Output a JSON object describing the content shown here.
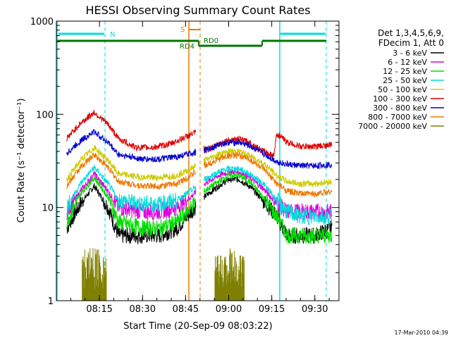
{
  "chart_data": {
    "type": "line",
    "title": "HESSI Observing Summary Count Rates",
    "xlabel": "Start Time (20-Sep-09 08:03:22)",
    "ylabel": "Count Rate (s⁻¹ detector⁻¹)",
    "y_scale": "log",
    "ylim": [
      1,
      1000
    ],
    "xlim_minutes": [
      8.0,
      9.64
    ],
    "x_unit": "hours",
    "x_ticks": [
      {
        "value": 8.25,
        "label": "08:15"
      },
      {
        "value": 8.5,
        "label": "08:30"
      },
      {
        "value": 8.75,
        "label": "08:45"
      },
      {
        "value": 9.0,
        "label": "09:00"
      },
      {
        "value": 9.25,
        "label": "09:15"
      },
      {
        "value": 9.5,
        "label": "09:30"
      }
    ],
    "y_ticks": [
      {
        "value": 1,
        "label": "1"
      },
      {
        "value": 10,
        "label": "10"
      },
      {
        "value": 100,
        "label": "100"
      },
      {
        "value": 1000,
        "label": "1000"
      }
    ],
    "legend": {
      "position": "right",
      "header": [
        "Det 1,3,4,5,6,9,",
        "FDecim 1, Att 0"
      ]
    },
    "series": [
      {
        "name": "3 - 6 keV",
        "color": "#000000",
        "points": [
          [
            8.06,
            6
          ],
          [
            8.14,
            11
          ],
          [
            8.22,
            17
          ],
          [
            8.3,
            10
          ],
          [
            8.36,
            5
          ],
          [
            8.5,
            5
          ],
          [
            8.6,
            5
          ],
          [
            8.7,
            6
          ],
          [
            8.78,
            9
          ],
          [
            8.86,
            13
          ],
          [
            8.94,
            17
          ],
          [
            9.0,
            20
          ],
          [
            9.06,
            20
          ],
          [
            9.12,
            17
          ],
          [
            9.2,
            12
          ],
          [
            9.28,
            8
          ],
          [
            9.34,
            5
          ],
          [
            9.42,
            5
          ],
          [
            9.5,
            5
          ],
          [
            9.6,
            6
          ]
        ]
      },
      {
        "name": "6 - 12 keV",
        "color": "#dd00dd",
        "points": [
          [
            8.06,
            9
          ],
          [
            8.14,
            15
          ],
          [
            8.22,
            23
          ],
          [
            8.3,
            15
          ],
          [
            8.36,
            10
          ],
          [
            8.5,
            9
          ],
          [
            8.6,
            9
          ],
          [
            8.7,
            10
          ],
          [
            8.78,
            13
          ],
          [
            8.86,
            18
          ],
          [
            8.94,
            22
          ],
          [
            9.0,
            24
          ],
          [
            9.06,
            24
          ],
          [
            9.12,
            21
          ],
          [
            9.2,
            16
          ],
          [
            9.28,
            11
          ],
          [
            9.34,
            9
          ],
          [
            9.42,
            9
          ],
          [
            9.5,
            9
          ],
          [
            9.6,
            9
          ]
        ]
      },
      {
        "name": "12 - 25 keV",
        "color": "#00dd00",
        "points": [
          [
            8.06,
            7
          ],
          [
            8.14,
            14
          ],
          [
            8.22,
            21
          ],
          [
            8.3,
            13
          ],
          [
            8.36,
            7
          ],
          [
            8.5,
            6
          ],
          [
            8.6,
            6
          ],
          [
            8.7,
            7
          ],
          [
            8.78,
            10
          ],
          [
            8.86,
            15
          ],
          [
            8.94,
            19
          ],
          [
            9.0,
            22
          ],
          [
            9.06,
            22
          ],
          [
            9.12,
            19
          ],
          [
            9.2,
            13
          ],
          [
            9.28,
            8
          ],
          [
            9.34,
            5
          ],
          [
            9.42,
            5
          ],
          [
            9.5,
            5
          ],
          [
            9.6,
            5
          ]
        ]
      },
      {
        "name": "25 - 50 keV",
        "color": "#00dddd",
        "points": [
          [
            8.06,
            10
          ],
          [
            8.14,
            18
          ],
          [
            8.22,
            27
          ],
          [
            8.3,
            18
          ],
          [
            8.36,
            12
          ],
          [
            8.5,
            11
          ],
          [
            8.6,
            11
          ],
          [
            8.7,
            12
          ],
          [
            8.78,
            15
          ],
          [
            8.86,
            20
          ],
          [
            8.94,
            24
          ],
          [
            9.0,
            26
          ],
          [
            9.06,
            26
          ],
          [
            9.12,
            23
          ],
          [
            9.2,
            18
          ],
          [
            9.28,
            12
          ],
          [
            9.34,
            9
          ],
          [
            9.42,
            8
          ],
          [
            9.5,
            8
          ],
          [
            9.6,
            8
          ]
        ]
      },
      {
        "name": "50 - 100 keV",
        "color": "#cccc00",
        "points": [
          [
            8.06,
            20
          ],
          [
            8.14,
            32
          ],
          [
            8.22,
            44
          ],
          [
            8.3,
            32
          ],
          [
            8.36,
            23
          ],
          [
            8.5,
            21
          ],
          [
            8.6,
            21
          ],
          [
            8.7,
            22
          ],
          [
            8.78,
            26
          ],
          [
            8.86,
            32
          ],
          [
            8.94,
            37
          ],
          [
            9.0,
            40
          ],
          [
            9.06,
            40
          ],
          [
            9.12,
            36
          ],
          [
            9.2,
            30
          ],
          [
            9.28,
            22
          ],
          [
            9.34,
            19
          ],
          [
            9.42,
            18
          ],
          [
            9.5,
            18
          ],
          [
            9.6,
            19
          ]
        ]
      },
      {
        "name": "100 - 300 keV",
        "color": "#dd0000",
        "points": [
          [
            8.06,
            55
          ],
          [
            8.14,
            80
          ],
          [
            8.22,
            105
          ],
          [
            8.3,
            78
          ],
          [
            8.36,
            55
          ],
          [
            8.46,
            44
          ],
          [
            8.56,
            44
          ],
          [
            8.66,
            48
          ],
          [
            8.74,
            56
          ],
          [
            8.84,
            68
          ],
          [
            8.86,
            40
          ],
          [
            8.94,
            48
          ],
          [
            9.0,
            53
          ],
          [
            9.06,
            54
          ],
          [
            9.12,
            50
          ],
          [
            9.2,
            40
          ],
          [
            9.26,
            36
          ],
          [
            9.28,
            62
          ],
          [
            9.34,
            50
          ],
          [
            9.42,
            45
          ],
          [
            9.5,
            45
          ],
          [
            9.6,
            47
          ]
        ]
      },
      {
        "name": "300 - 800 keV",
        "color": "#0000cc",
        "points": [
          [
            8.06,
            38
          ],
          [
            8.14,
            52
          ],
          [
            8.22,
            65
          ],
          [
            8.3,
            50
          ],
          [
            8.36,
            37
          ],
          [
            8.5,
            33
          ],
          [
            8.6,
            33
          ],
          [
            8.7,
            35
          ],
          [
            8.78,
            38
          ],
          [
            8.86,
            41
          ],
          [
            8.94,
            47
          ],
          [
            9.0,
            50
          ],
          [
            9.06,
            50
          ],
          [
            9.12,
            46
          ],
          [
            9.2,
            38
          ],
          [
            9.28,
            31
          ],
          [
            9.34,
            29
          ],
          [
            9.42,
            28
          ],
          [
            9.5,
            28
          ],
          [
            9.6,
            29
          ]
        ]
      },
      {
        "name": "800 - 7000 keV",
        "color": "#ee7700",
        "points": [
          [
            8.06,
            17
          ],
          [
            8.14,
            27
          ],
          [
            8.22,
            37
          ],
          [
            8.3,
            27
          ],
          [
            8.36,
            19
          ],
          [
            8.5,
            17
          ],
          [
            8.6,
            17
          ],
          [
            8.7,
            18
          ],
          [
            8.78,
            22
          ],
          [
            8.86,
            28
          ],
          [
            8.94,
            33
          ],
          [
            9.0,
            36
          ],
          [
            9.06,
            36
          ],
          [
            9.12,
            33
          ],
          [
            9.2,
            26
          ],
          [
            9.28,
            18
          ],
          [
            9.34,
            15
          ],
          [
            9.42,
            14
          ],
          [
            9.5,
            14
          ],
          [
            9.6,
            15
          ]
        ]
      },
      {
        "name": "7000 - 20000 keV",
        "color": "#808000",
        "points": [
          [
            8.16,
            2.5
          ],
          [
            8.22,
            3.0
          ],
          [
            8.28,
            2.5
          ],
          [
            8.94,
            2.0
          ],
          [
            9.0,
            2.7
          ],
          [
            9.08,
            2.0
          ]
        ]
      }
    ],
    "annotations": [
      {
        "text": "N",
        "color": "#00dddd"
      },
      {
        "text": "S",
        "color": "#ee7700"
      },
      {
        "text": "RD0",
        "color": "#007700"
      },
      {
        "text": "RD4",
        "color": "#007700"
      }
    ],
    "footer_timestamp": "17-Mar-2010 04:39"
  }
}
